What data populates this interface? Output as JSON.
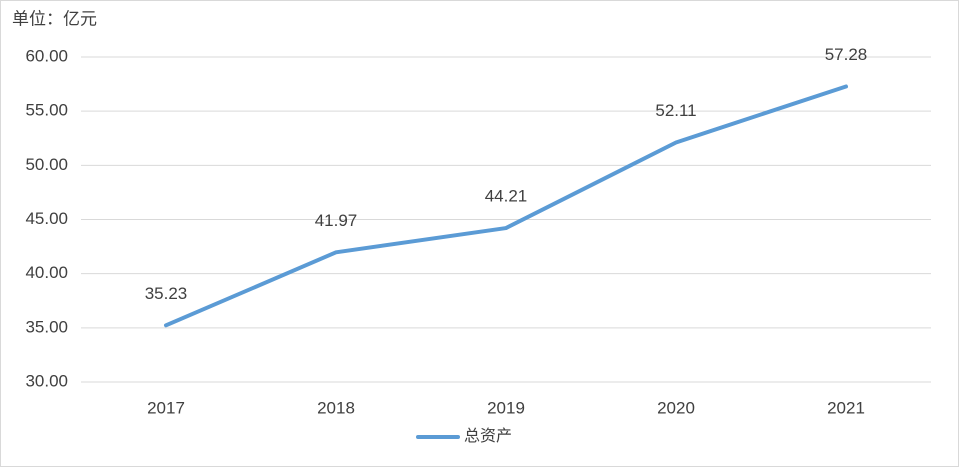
{
  "chart_data": {
    "type": "line",
    "title": "单位：亿元",
    "categories": [
      "2017",
      "2018",
      "2019",
      "2020",
      "2021"
    ],
    "series": [
      {
        "name": "总资产",
        "color": "#5b9bd5",
        "values": [
          35.23,
          41.97,
          44.21,
          52.11,
          57.28
        ]
      }
    ],
    "ylim": [
      30,
      60
    ],
    "yticks": [
      {
        "value": 30,
        "label": "30.00"
      },
      {
        "value": 35,
        "label": "35.00"
      },
      {
        "value": 40,
        "label": "40.00"
      },
      {
        "value": 45,
        "label": "45.00"
      },
      {
        "value": 50,
        "label": "50.00"
      },
      {
        "value": 55,
        "label": "55.00"
      },
      {
        "value": 60,
        "label": "60.00"
      }
    ],
    "grid": true,
    "legend": "bottom"
  }
}
